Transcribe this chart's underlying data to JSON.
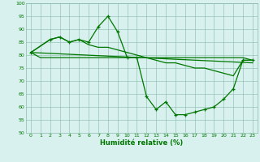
{
  "line_flat": {
    "x": [
      0,
      1,
      2,
      3,
      4,
      5,
      6,
      7,
      8,
      9,
      10,
      11,
      12,
      13,
      14,
      15,
      16,
      17,
      18,
      19,
      20,
      21,
      22,
      23
    ],
    "y": [
      81,
      79,
      79,
      79,
      79,
      79,
      79,
      79,
      79,
      79,
      79,
      79,
      79,
      79,
      79,
      79,
      79,
      79,
      79,
      79,
      79,
      79,
      79,
      78
    ]
  },
  "line_trend": {
    "x": [
      0,
      23
    ],
    "y": [
      81,
      77
    ]
  },
  "line_main": {
    "x": [
      0,
      2,
      3,
      4,
      5,
      6,
      7,
      8,
      9,
      10,
      11,
      12,
      13,
      14,
      15,
      16,
      17,
      18,
      19,
      20,
      21,
      22,
      23
    ],
    "y": [
      81,
      86,
      87,
      85,
      86,
      85,
      91,
      95,
      89,
      79,
      79,
      64,
      59,
      62,
      57,
      57,
      58,
      59,
      60,
      63,
      67,
      78,
      78
    ]
  },
  "line_trend2": {
    "x": [
      0,
      2,
      3,
      4,
      5,
      6,
      7,
      8,
      9,
      10,
      11,
      12,
      13,
      14,
      15,
      16,
      17,
      18,
      19,
      20,
      21,
      22,
      23
    ],
    "y": [
      81,
      86,
      87,
      85,
      86,
      84,
      83,
      83,
      82,
      81,
      80,
      79,
      78,
      77,
      77,
      76,
      75,
      75,
      74,
      73,
      72,
      78,
      78
    ]
  },
  "xlabel": "Humidité relative (%)",
  "xlim": [
    -0.5,
    23.5
  ],
  "ylim": [
    50,
    100
  ],
  "yticks": [
    50,
    55,
    60,
    65,
    70,
    75,
    80,
    85,
    90,
    95,
    100
  ],
  "xticks": [
    0,
    1,
    2,
    3,
    4,
    5,
    6,
    7,
    8,
    9,
    10,
    11,
    12,
    13,
    14,
    15,
    16,
    17,
    18,
    19,
    20,
    21,
    22,
    23
  ],
  "bg_color": "#d8f0ee",
  "grid_color": "#88bbaa",
  "line_color": "#007700",
  "font_color": "#007700"
}
